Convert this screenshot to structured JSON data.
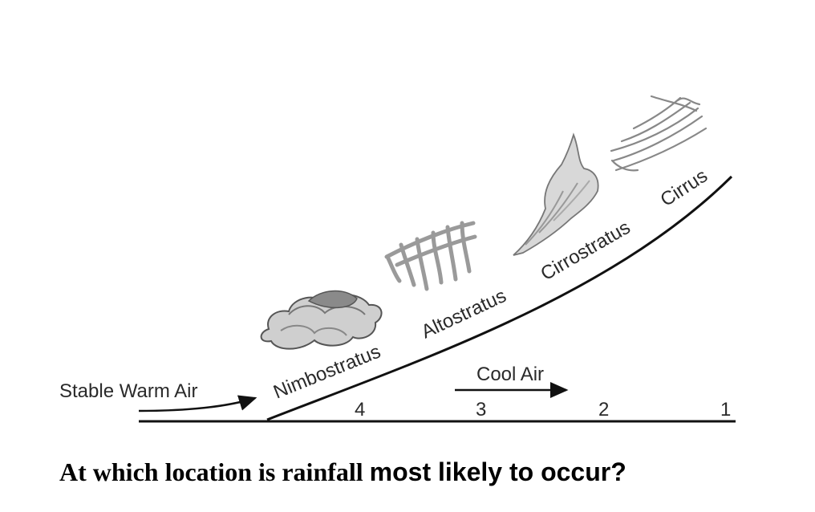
{
  "diagram": {
    "labels": {
      "stable_warm_air": "Stable Warm Air",
      "cool_air": "Cool Air"
    },
    "clouds": [
      {
        "name": "Nimbostratus"
      },
      {
        "name": "Altostratus"
      },
      {
        "name": "Cirrostratus"
      },
      {
        "name": "Cirrus"
      }
    ],
    "locations": [
      "4",
      "3",
      "2",
      "1"
    ]
  },
  "question": {
    "part1": "At which location is rainfall ",
    "part2": "most likely to occur?"
  },
  "colors": {
    "line": "#111111",
    "cloud_dark": "#7a7a7a",
    "cloud_light": "#c8c8c8"
  }
}
